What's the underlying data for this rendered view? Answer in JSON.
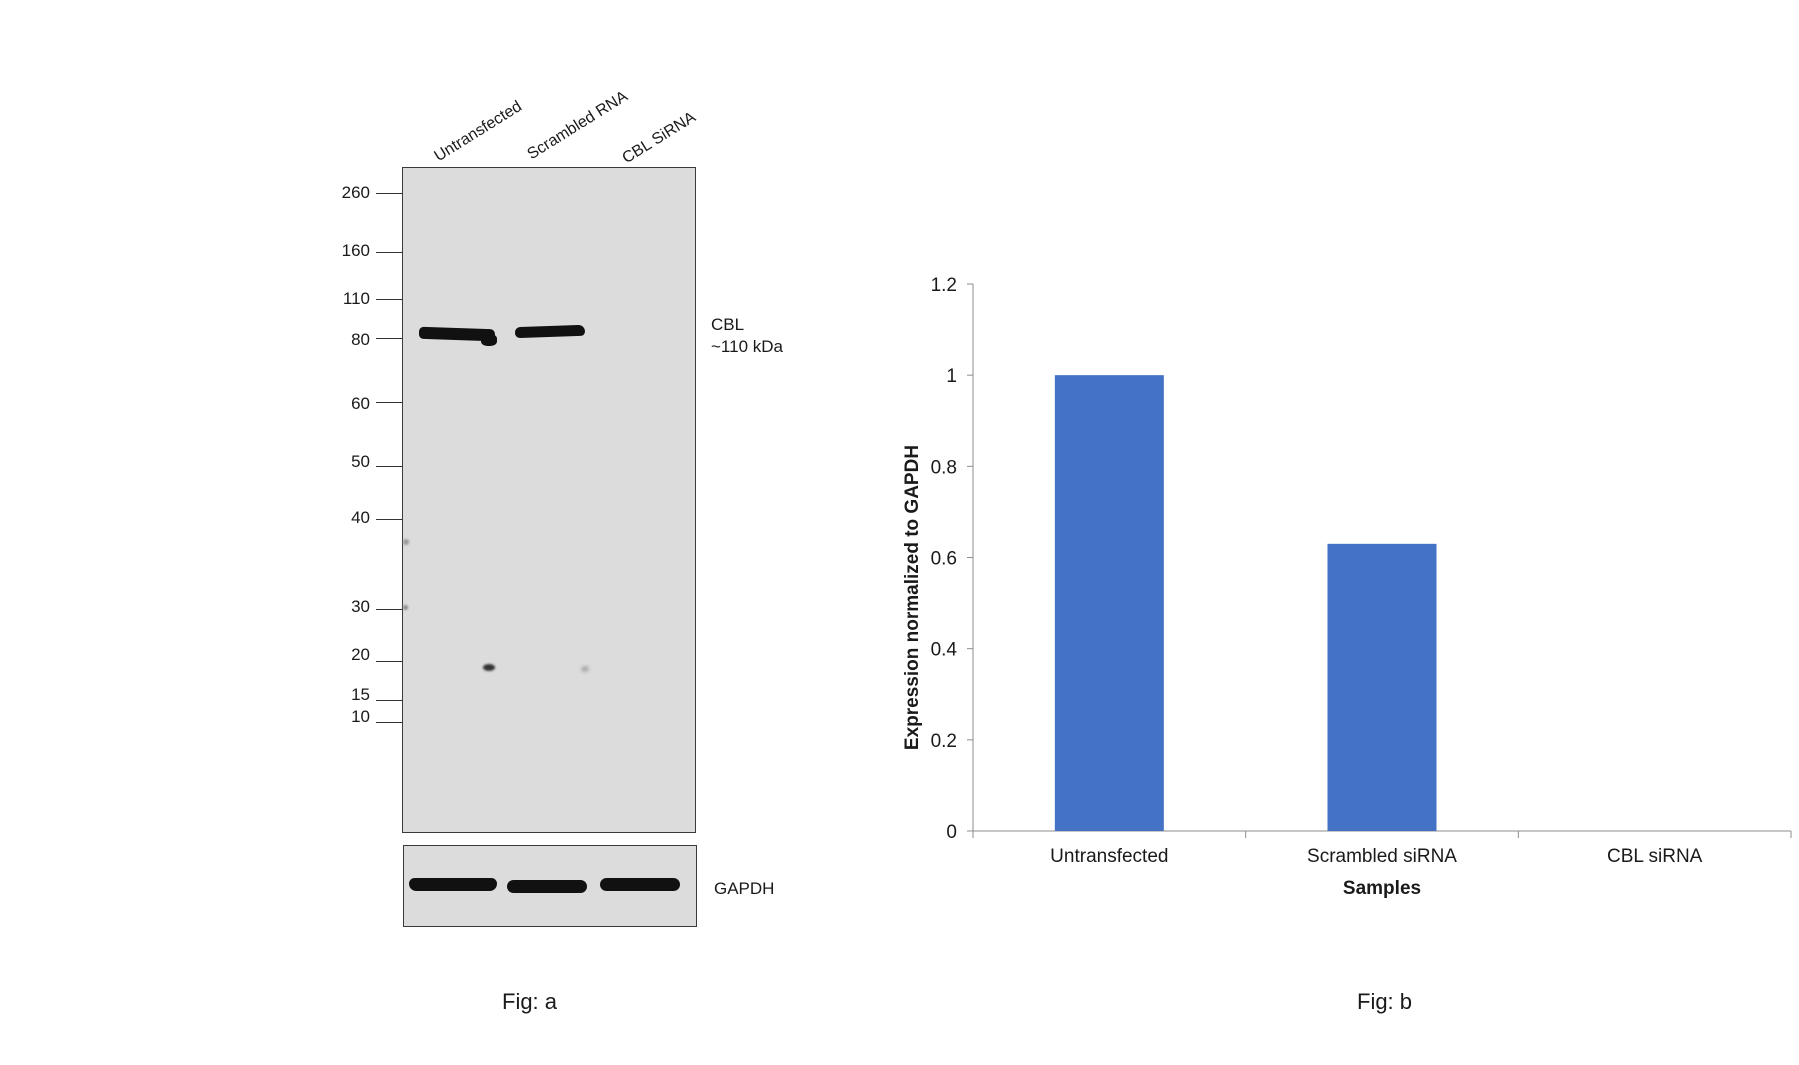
{
  "fig_a": {
    "lanes": [
      "Untransfected",
      "Scrambled RNA",
      "CBL SiRNA"
    ],
    "markers": [
      "260",
      "160",
      "110",
      "80",
      "60",
      "50",
      "40",
      "30",
      "20",
      "15",
      "10"
    ],
    "band_label_line1": "CBL",
    "band_label_line2": "~110 kDa",
    "loading_control": "GAPDH",
    "caption": "Fig: a"
  },
  "fig_b": {
    "caption": "Fig: b"
  },
  "chart_data": {
    "type": "bar",
    "categories": [
      "Untransfected",
      "Scrambled siRNA",
      "CBL siRNA"
    ],
    "values": [
      1.0,
      0.63,
      0.0
    ],
    "xlabel": "Samples",
    "ylabel": "Expression normalized to GAPDH",
    "ylim": [
      0,
      1.2
    ],
    "yticks": [
      "0",
      "0.2",
      "0.4",
      "0.6",
      "0.8",
      "1",
      "1.2"
    ],
    "bar_color": "#4472c4",
    "grid": false,
    "legend": "none"
  }
}
